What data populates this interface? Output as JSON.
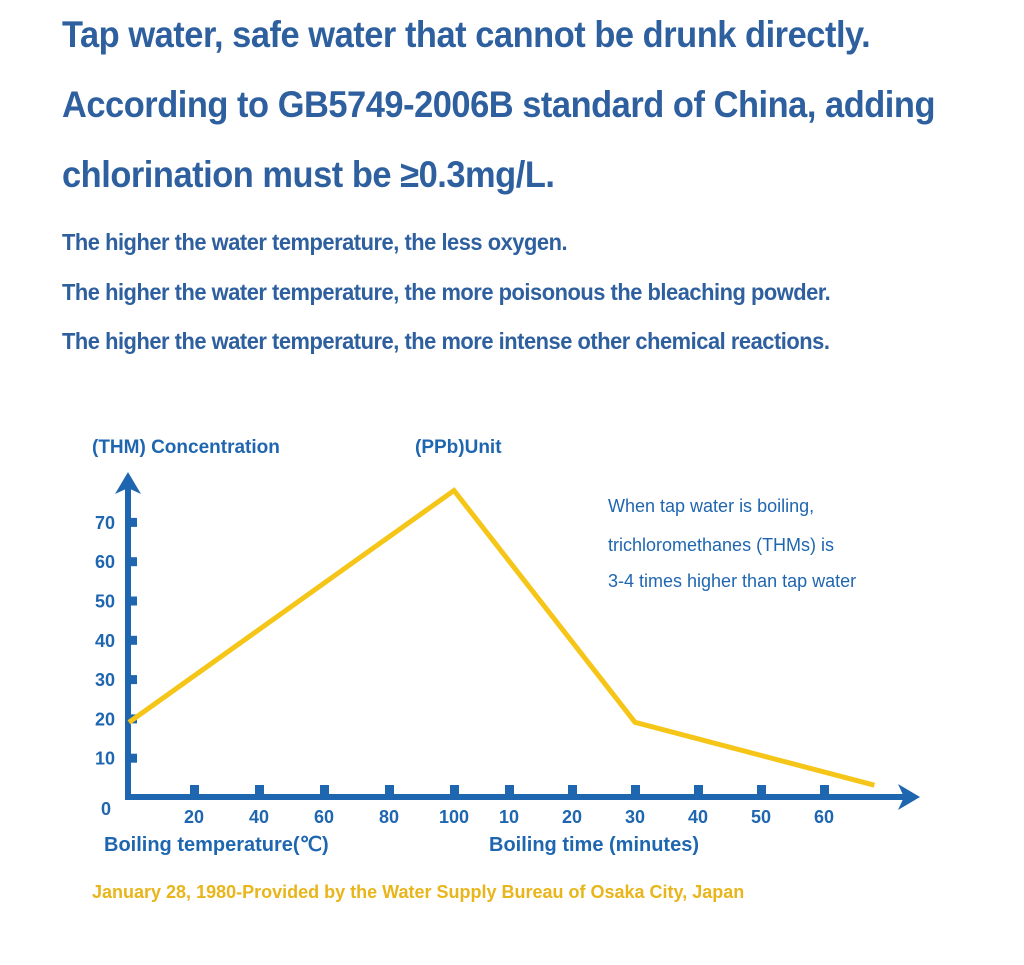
{
  "headlines": {
    "line1": "Tap water, safe water that cannot be drunk directly.",
    "line2": "According to GB5749-2006B standard of China, adding",
    "line3": "chlorination must be ≥0.3mg/L.",
    "line4": "The higher the water temperature, the less oxygen.",
    "line5": "The higher the water temperature, the more poisonous the bleaching powder.",
    "line6": "The higher the water temperature, the more intense other chemical reactions."
  },
  "colors": {
    "heading": "#2e5f9e",
    "axis": "#1f66b0",
    "line": "#f5c518",
    "source": "#e8b51a"
  },
  "chart_data": {
    "type": "line",
    "title": "",
    "ylabel": "(THM) Concentration",
    "unit_label": "(PPb)Unit",
    "ylim": [
      0,
      80
    ],
    "y_ticks": [
      "10",
      "20",
      "30",
      "40",
      "50",
      "60",
      "70"
    ],
    "origin_label": "0",
    "x_ticks": [
      "20",
      "40",
      "60",
      "80",
      "100",
      "10",
      "20",
      "30",
      "40",
      "50",
      "60"
    ],
    "xlabel_left": "Boiling temperature(℃)",
    "xlabel_right": "Boiling time (minutes)",
    "segments": [
      {
        "axis": "Boiling temperature(℃)",
        "x": [
          0,
          100
        ],
        "y": [
          19,
          78
        ]
      },
      {
        "axis": "Boiling time (minutes)",
        "x": [
          0,
          30,
          68
        ],
        "y": [
          78,
          19,
          3
        ]
      }
    ],
    "annotation": [
      "When tap water is boiling,",
      "trichloromethanes (THMs) is",
      "3-4 times higher than tap water"
    ],
    "source": "January 28, 1980-Provided by the Water Supply Bureau of Osaka City, Japan"
  }
}
